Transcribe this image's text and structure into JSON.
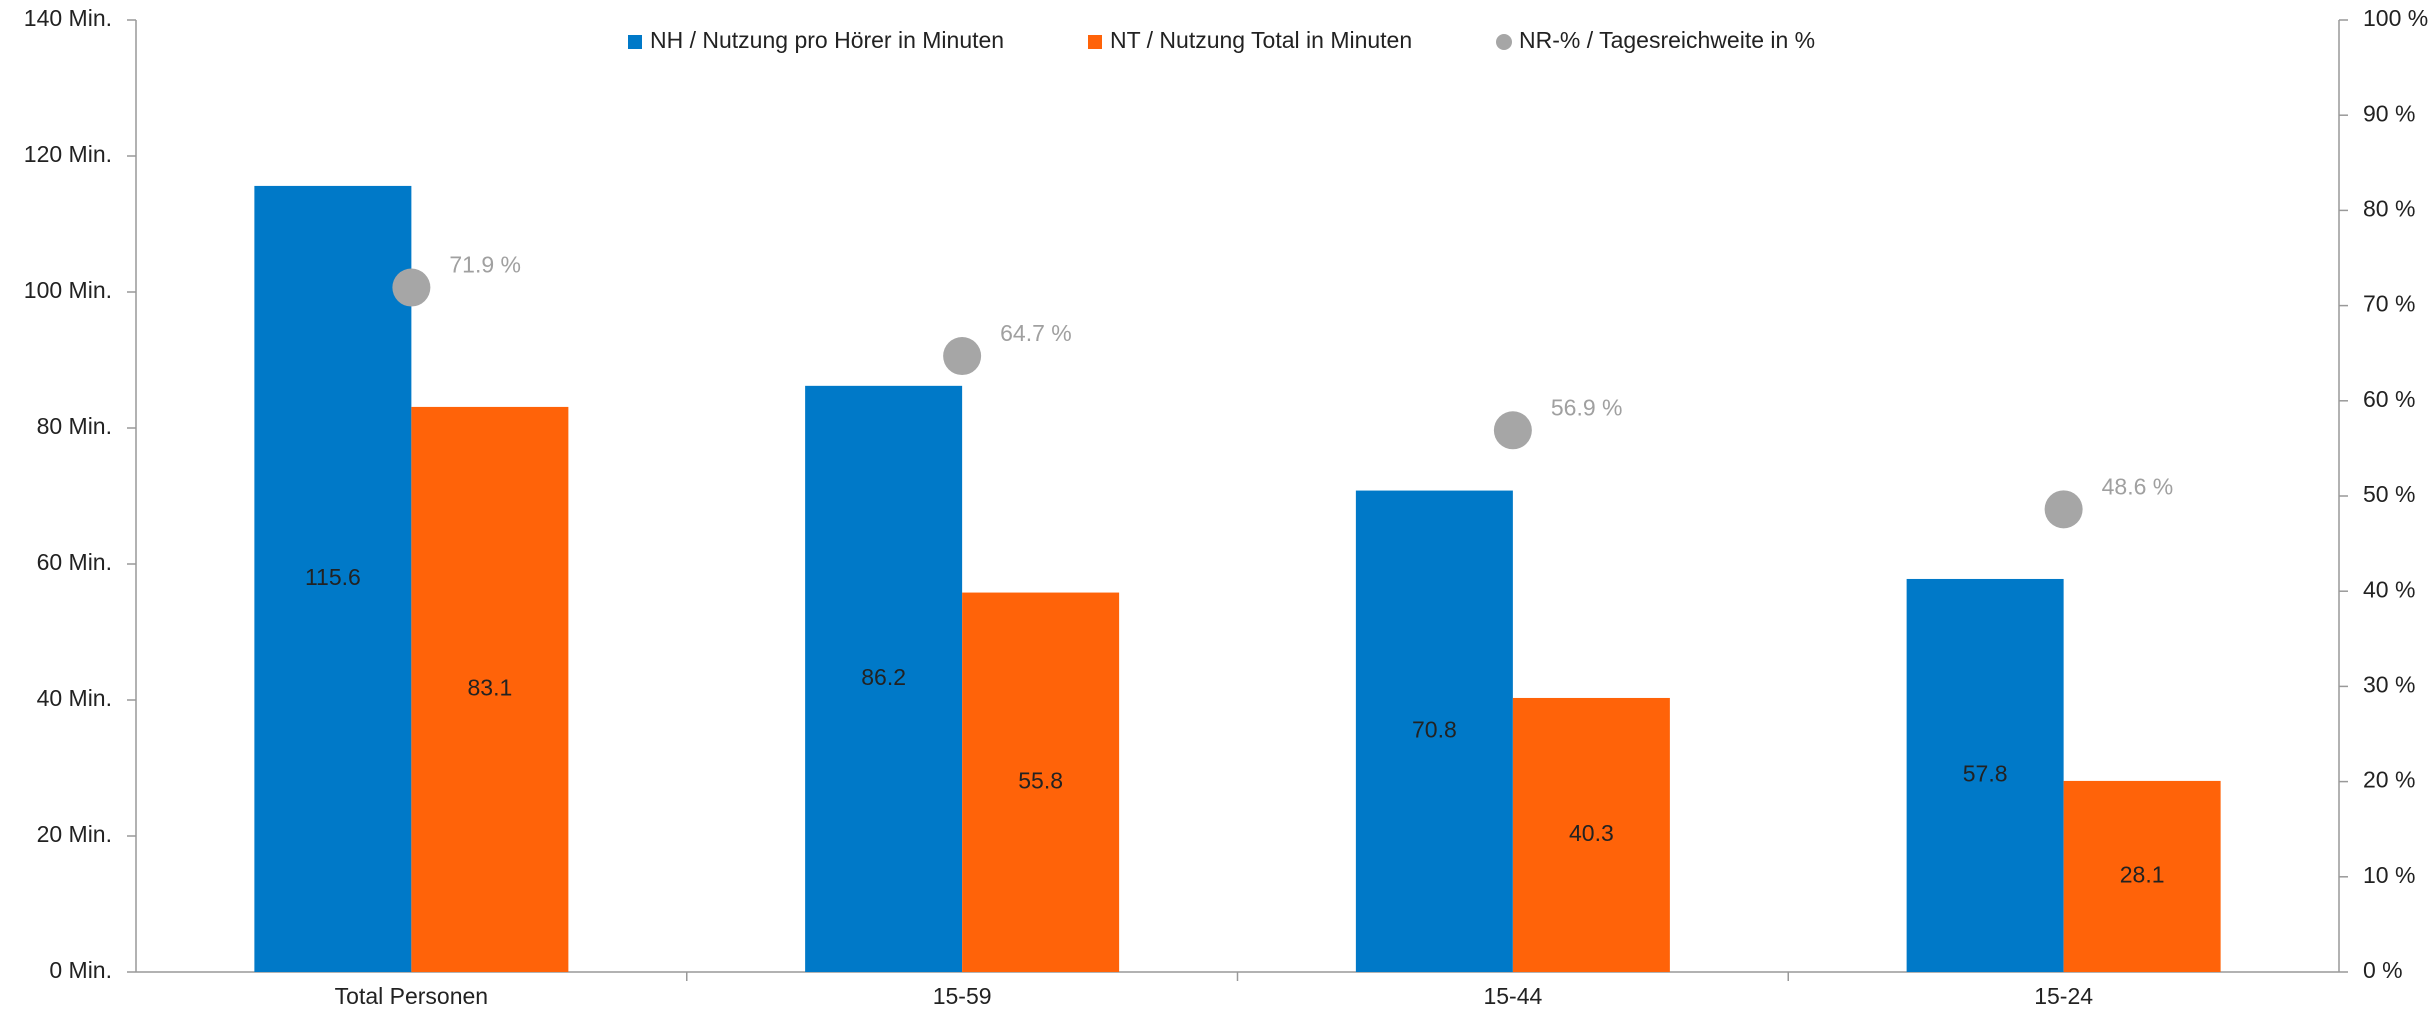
{
  "chart_data": {
    "type": "bar",
    "categories": [
      "Total Personen",
      "15-59",
      "15-44",
      "15-24"
    ],
    "series": [
      {
        "name": "NH / Nutzung pro Hörer in Minuten",
        "color": "#0079c8",
        "values": [
          115.6,
          86.2,
          70.8,
          57.8
        ]
      },
      {
        "name": "NT / Nutzung Total in Minuten",
        "color": "#ff6309",
        "values": [
          83.1,
          55.8,
          40.3,
          28.1
        ]
      },
      {
        "name": "NR-% / Tagesreichweite in %",
        "color": "#a6a6a6",
        "type": "scatter",
        "axis": "y2",
        "values": [
          71.9,
          64.7,
          56.9,
          48.6
        ],
        "value_labels": [
          "71.9 %",
          "64.7 %",
          "56.9 %",
          "48.6 %"
        ]
      }
    ],
    "ylim": [
      0,
      140
    ],
    "yticks": [
      {
        "value": 0,
        "label": "0 Min."
      },
      {
        "value": 20,
        "label": "20 Min."
      },
      {
        "value": 40,
        "label": "40 Min."
      },
      {
        "value": 60,
        "label": "60 Min."
      },
      {
        "value": 80,
        "label": "80 Min."
      },
      {
        "value": 100,
        "label": "100 Min."
      },
      {
        "value": 120,
        "label": "120 Min."
      },
      {
        "value": 140,
        "label": "140 Min."
      }
    ],
    "y2lim": [
      0,
      100
    ],
    "y2ticks": [
      {
        "value": 0,
        "label": "0 %"
      },
      {
        "value": 10,
        "label": "10 %"
      },
      {
        "value": 20,
        "label": "20 %"
      },
      {
        "value": 30,
        "label": "30 %"
      },
      {
        "value": 40,
        "label": "40 %"
      },
      {
        "value": 50,
        "label": "50 %"
      },
      {
        "value": 60,
        "label": "60 %"
      },
      {
        "value": 70,
        "label": "70 %"
      },
      {
        "value": 80,
        "label": "80 %"
      },
      {
        "value": 90,
        "label": "90 %"
      },
      {
        "value": 100,
        "label": "100 %"
      }
    ],
    "legend": "top"
  }
}
